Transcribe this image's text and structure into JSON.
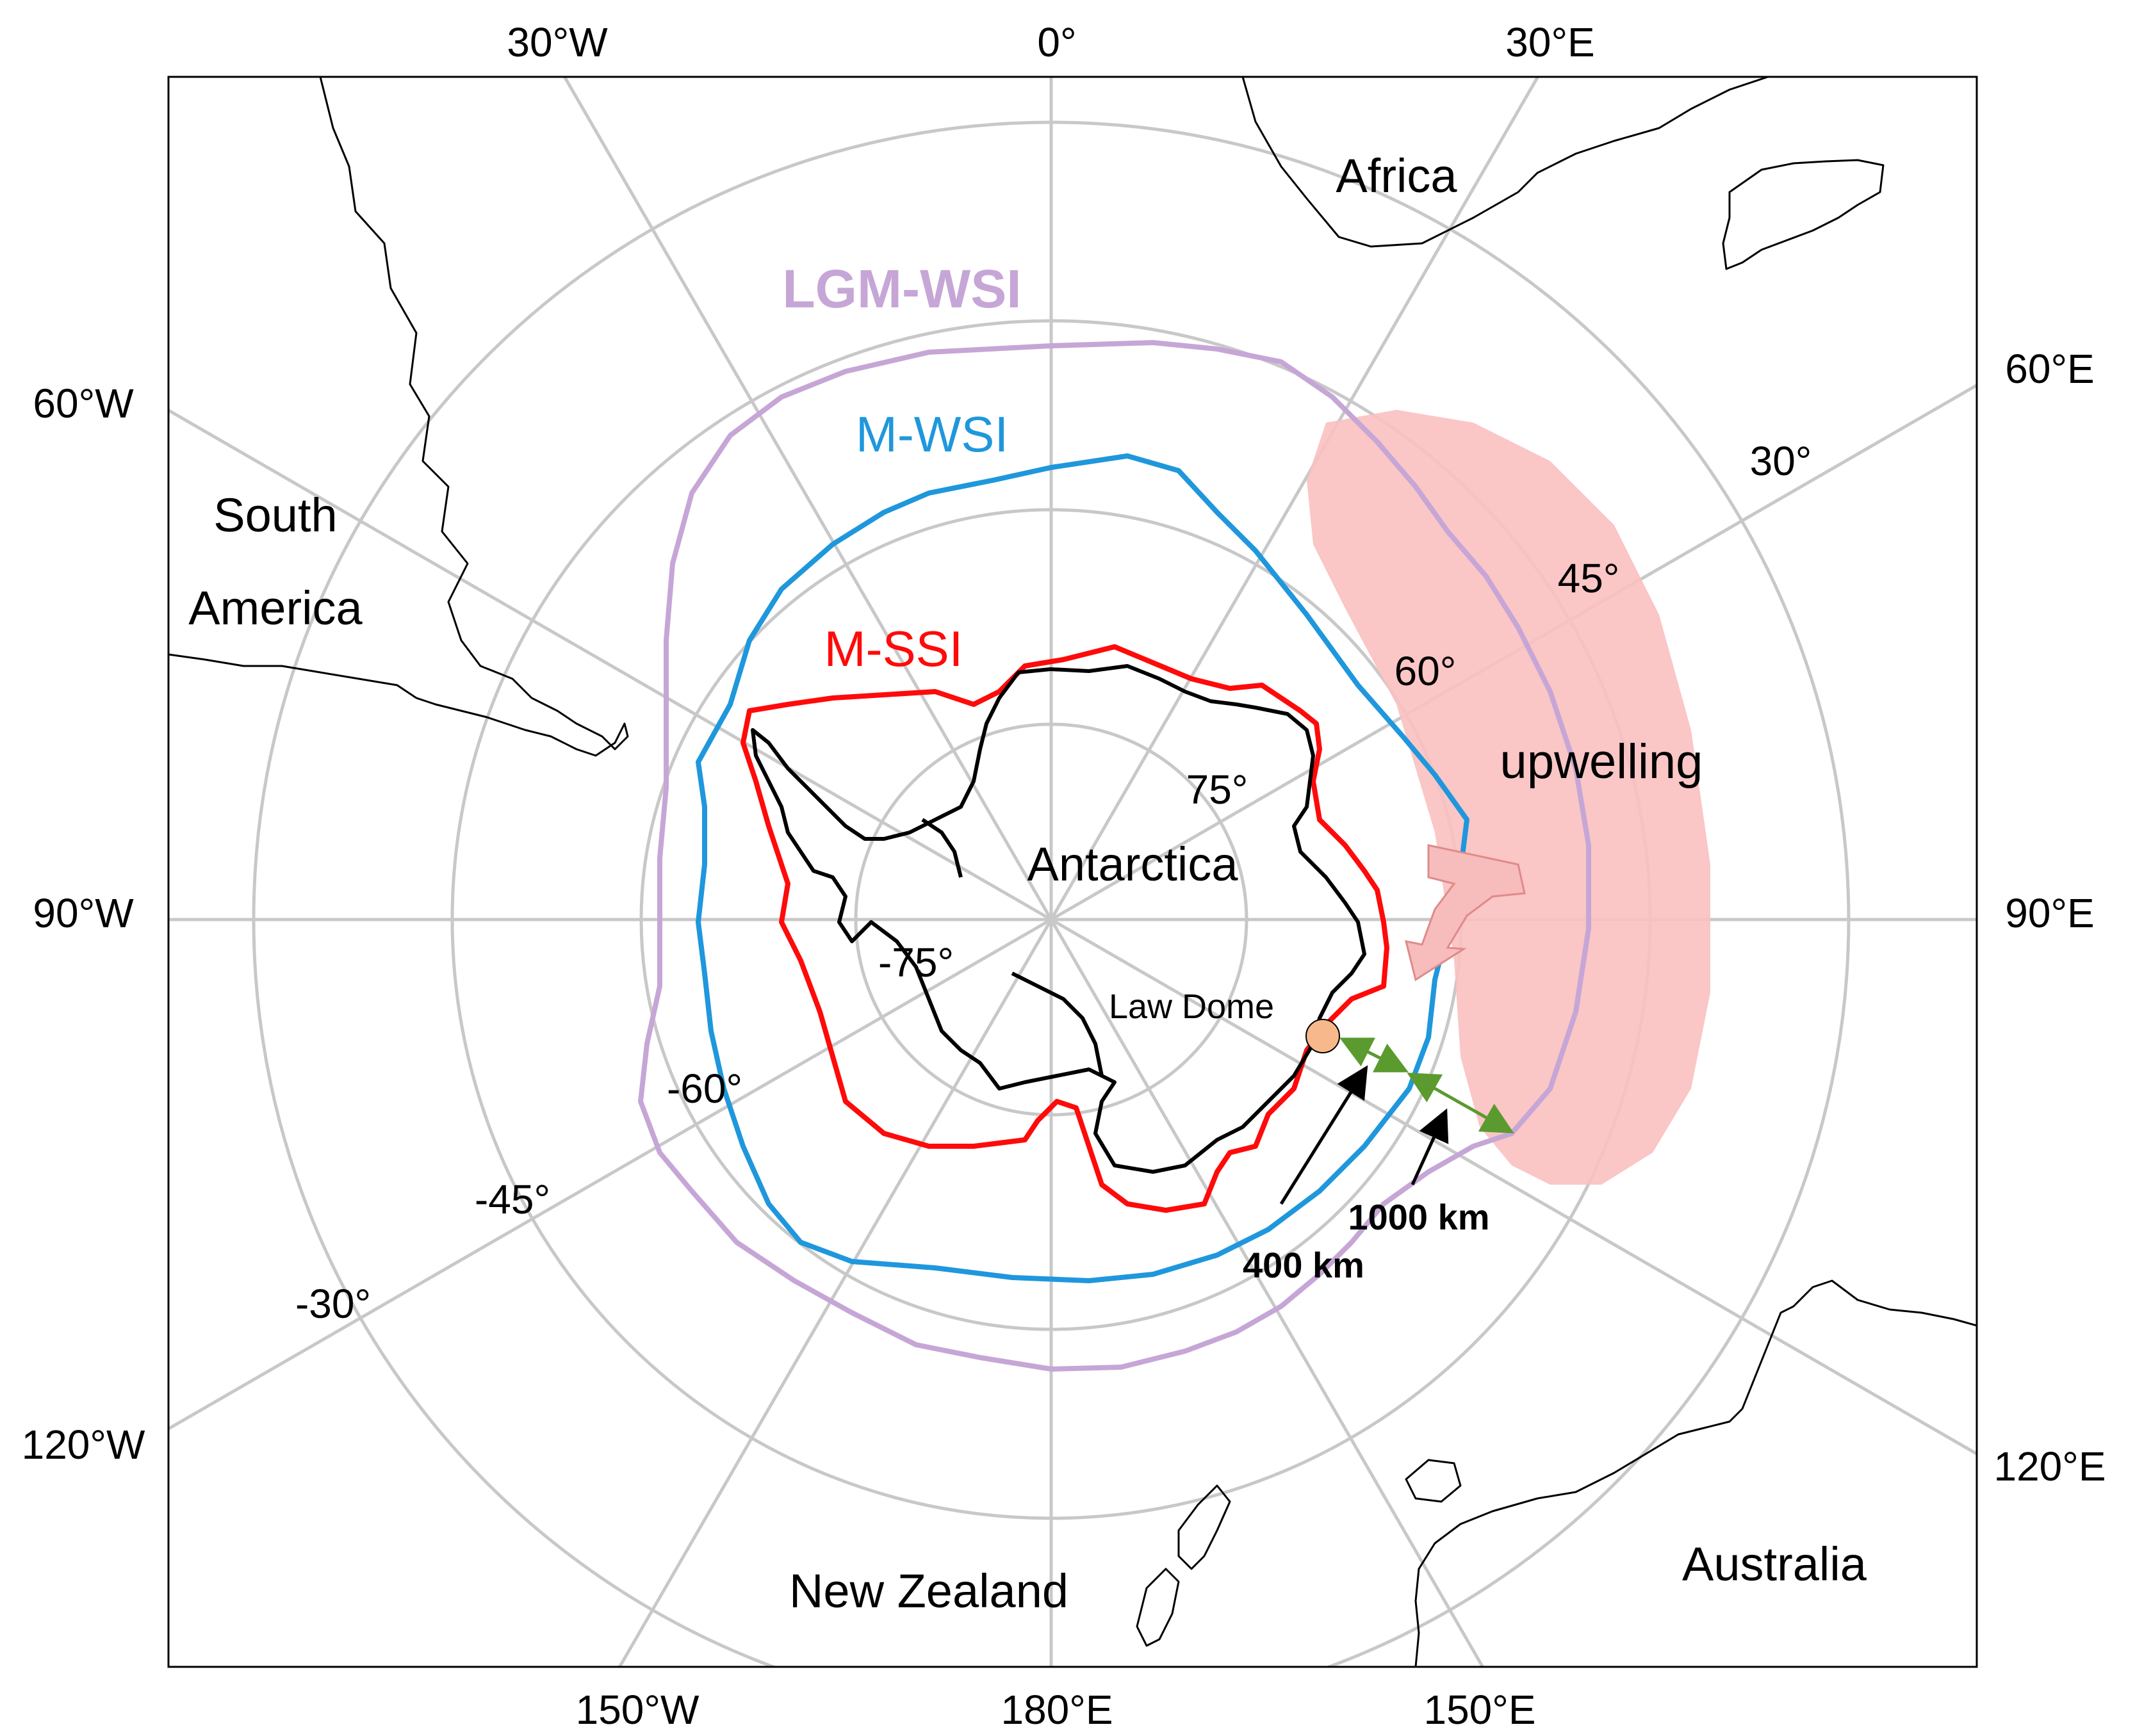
{
  "map": {
    "longitude_labels": {
      "lon_0": "0°",
      "lon_30w": "30°W",
      "lon_30e": "30°E",
      "lon_60w": "60°W",
      "lon_60e": "60°E",
      "lon_90w": "90°W",
      "lon_90e": "90°E",
      "lon_120w": "120°W",
      "lon_120e": "120°E",
      "lon_150w": "150°W",
      "lon_180e": "180°E",
      "lon_150e": "150°E"
    },
    "latitude_labels": {
      "lat_30": "30°",
      "lat_45": "45°",
      "lat_60": "60°",
      "lat_75": "75°",
      "lat_neg75": "-75°",
      "lat_neg60": "-60°",
      "lat_neg45": "-45°",
      "lat_neg30": "-30°"
    },
    "region_labels": {
      "africa": "Africa",
      "south": "South",
      "america": "America",
      "antarctica": "Antarctica",
      "new_zealand": "New Zealand",
      "australia": "Australia"
    },
    "ice_lines": [
      {
        "name": "LGM-WSI",
        "color": "#c6a6d6"
      },
      {
        "name": "M-WSI",
        "color": "#1f97dc"
      },
      {
        "name": "M-SSI",
        "color": "#ff0a0a"
      }
    ],
    "annotations": {
      "upwelling": "upwelling",
      "law_dome": "Law Dome",
      "dist_400": "400 km",
      "dist_1000": "1000 km"
    },
    "colors": {
      "upwelling_fill": "#f9c0c0",
      "upwelling_arrow": "#f7bcbc",
      "law_dome_marker": "#f7b98b",
      "distance_arrow": "#5b9a2f",
      "grid": "#c8c8c8"
    }
  }
}
